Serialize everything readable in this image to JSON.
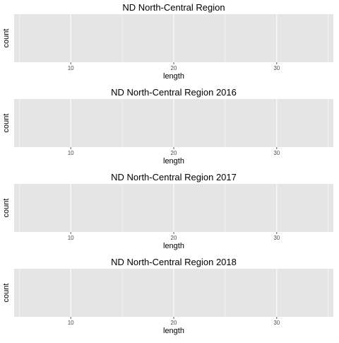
{
  "chart_data": [
    {
      "type": "bar",
      "title": "ND North-Central Region",
      "xlabel": "length",
      "ylabel": "count",
      "xlim": [
        4.5,
        35.5
      ],
      "x_major_ticks": [
        10,
        20,
        30
      ],
      "x_minor_ticks": [
        5,
        15,
        25,
        35
      ],
      "x_tick_labels": [
        "10",
        "20",
        "30"
      ],
      "values": [],
      "grid": true
    },
    {
      "type": "bar",
      "title": "ND North-Central Region 2016",
      "xlabel": "length",
      "ylabel": "count",
      "xlim": [
        4.5,
        35.5
      ],
      "x_major_ticks": [
        10,
        20,
        30
      ],
      "x_minor_ticks": [
        5,
        15,
        25,
        35
      ],
      "x_tick_labels": [
        "10",
        "20",
        "30"
      ],
      "values": [],
      "grid": true
    },
    {
      "type": "bar",
      "title": "ND North-Central Region 2017",
      "xlabel": "length",
      "ylabel": "count",
      "xlim": [
        4.5,
        35.5
      ],
      "x_major_ticks": [
        10,
        20,
        30
      ],
      "x_minor_ticks": [
        5,
        15,
        25,
        35
      ],
      "x_tick_labels": [
        "10",
        "20",
        "30"
      ],
      "values": [],
      "grid": true
    },
    {
      "type": "bar",
      "title": "ND North-Central Region 2018",
      "xlabel": "length",
      "ylabel": "count",
      "xlim": [
        4.5,
        35.5
      ],
      "x_major_ticks": [
        10,
        20,
        30
      ],
      "x_minor_ticks": [
        5,
        15,
        25,
        35
      ],
      "x_tick_labels": [
        "10",
        "20",
        "30"
      ],
      "values": [],
      "grid": true
    }
  ],
  "colors": {
    "panel_background": "#e5e5e5",
    "grid_line": "#ffffff",
    "title_text": "#000000",
    "tick_text": "#4d4d4d",
    "tick_mark": "#333333"
  }
}
